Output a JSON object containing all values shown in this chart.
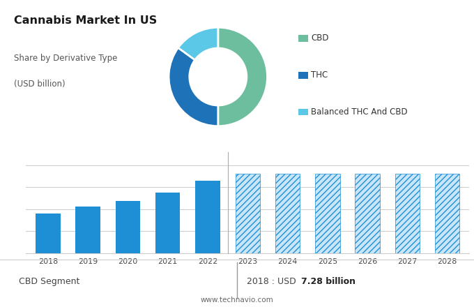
{
  "title": "Cannabis Market In US",
  "subtitle1": "Share by Derivative Type",
  "subtitle2": "(USD billion)",
  "donut_values": [
    50,
    35,
    15
  ],
  "donut_colors": [
    "#6dbe9e",
    "#1e72b8",
    "#5bc8e8"
  ],
  "donut_labels": [
    "CBD",
    "THC",
    "Balanced THC And CBD"
  ],
  "bar_years": [
    "2018",
    "2019",
    "2020",
    "2021",
    "2022",
    "2023",
    "2024",
    "2025",
    "2026",
    "2027",
    "2028"
  ],
  "bar_values_solid": [
    7.28,
    8.5,
    9.5,
    11.0,
    13.2
  ],
  "bar_values_hatch": [
    14.5,
    14.5,
    14.5,
    14.5,
    14.5,
    14.5
  ],
  "bar_color_solid": "#1e8fd5",
  "bar_color_hatch_face": "#c8e6f8",
  "bar_color_hatch_edge": "#1e8fd5",
  "bar_hatch_pattern": "////",
  "solid_count": 5,
  "footer_left": "CBD Segment",
  "footer_right_prefix": "2018 : USD ",
  "footer_right_bold": "7.28 billion",
  "footer_url": "www.technavio.com",
  "top_bg_color": "#e0e0e0",
  "bottom_bg_color": "#ffffff",
  "bar_ylim": [
    0,
    17
  ],
  "grid_lines": [
    0,
    4,
    8,
    12,
    16
  ]
}
